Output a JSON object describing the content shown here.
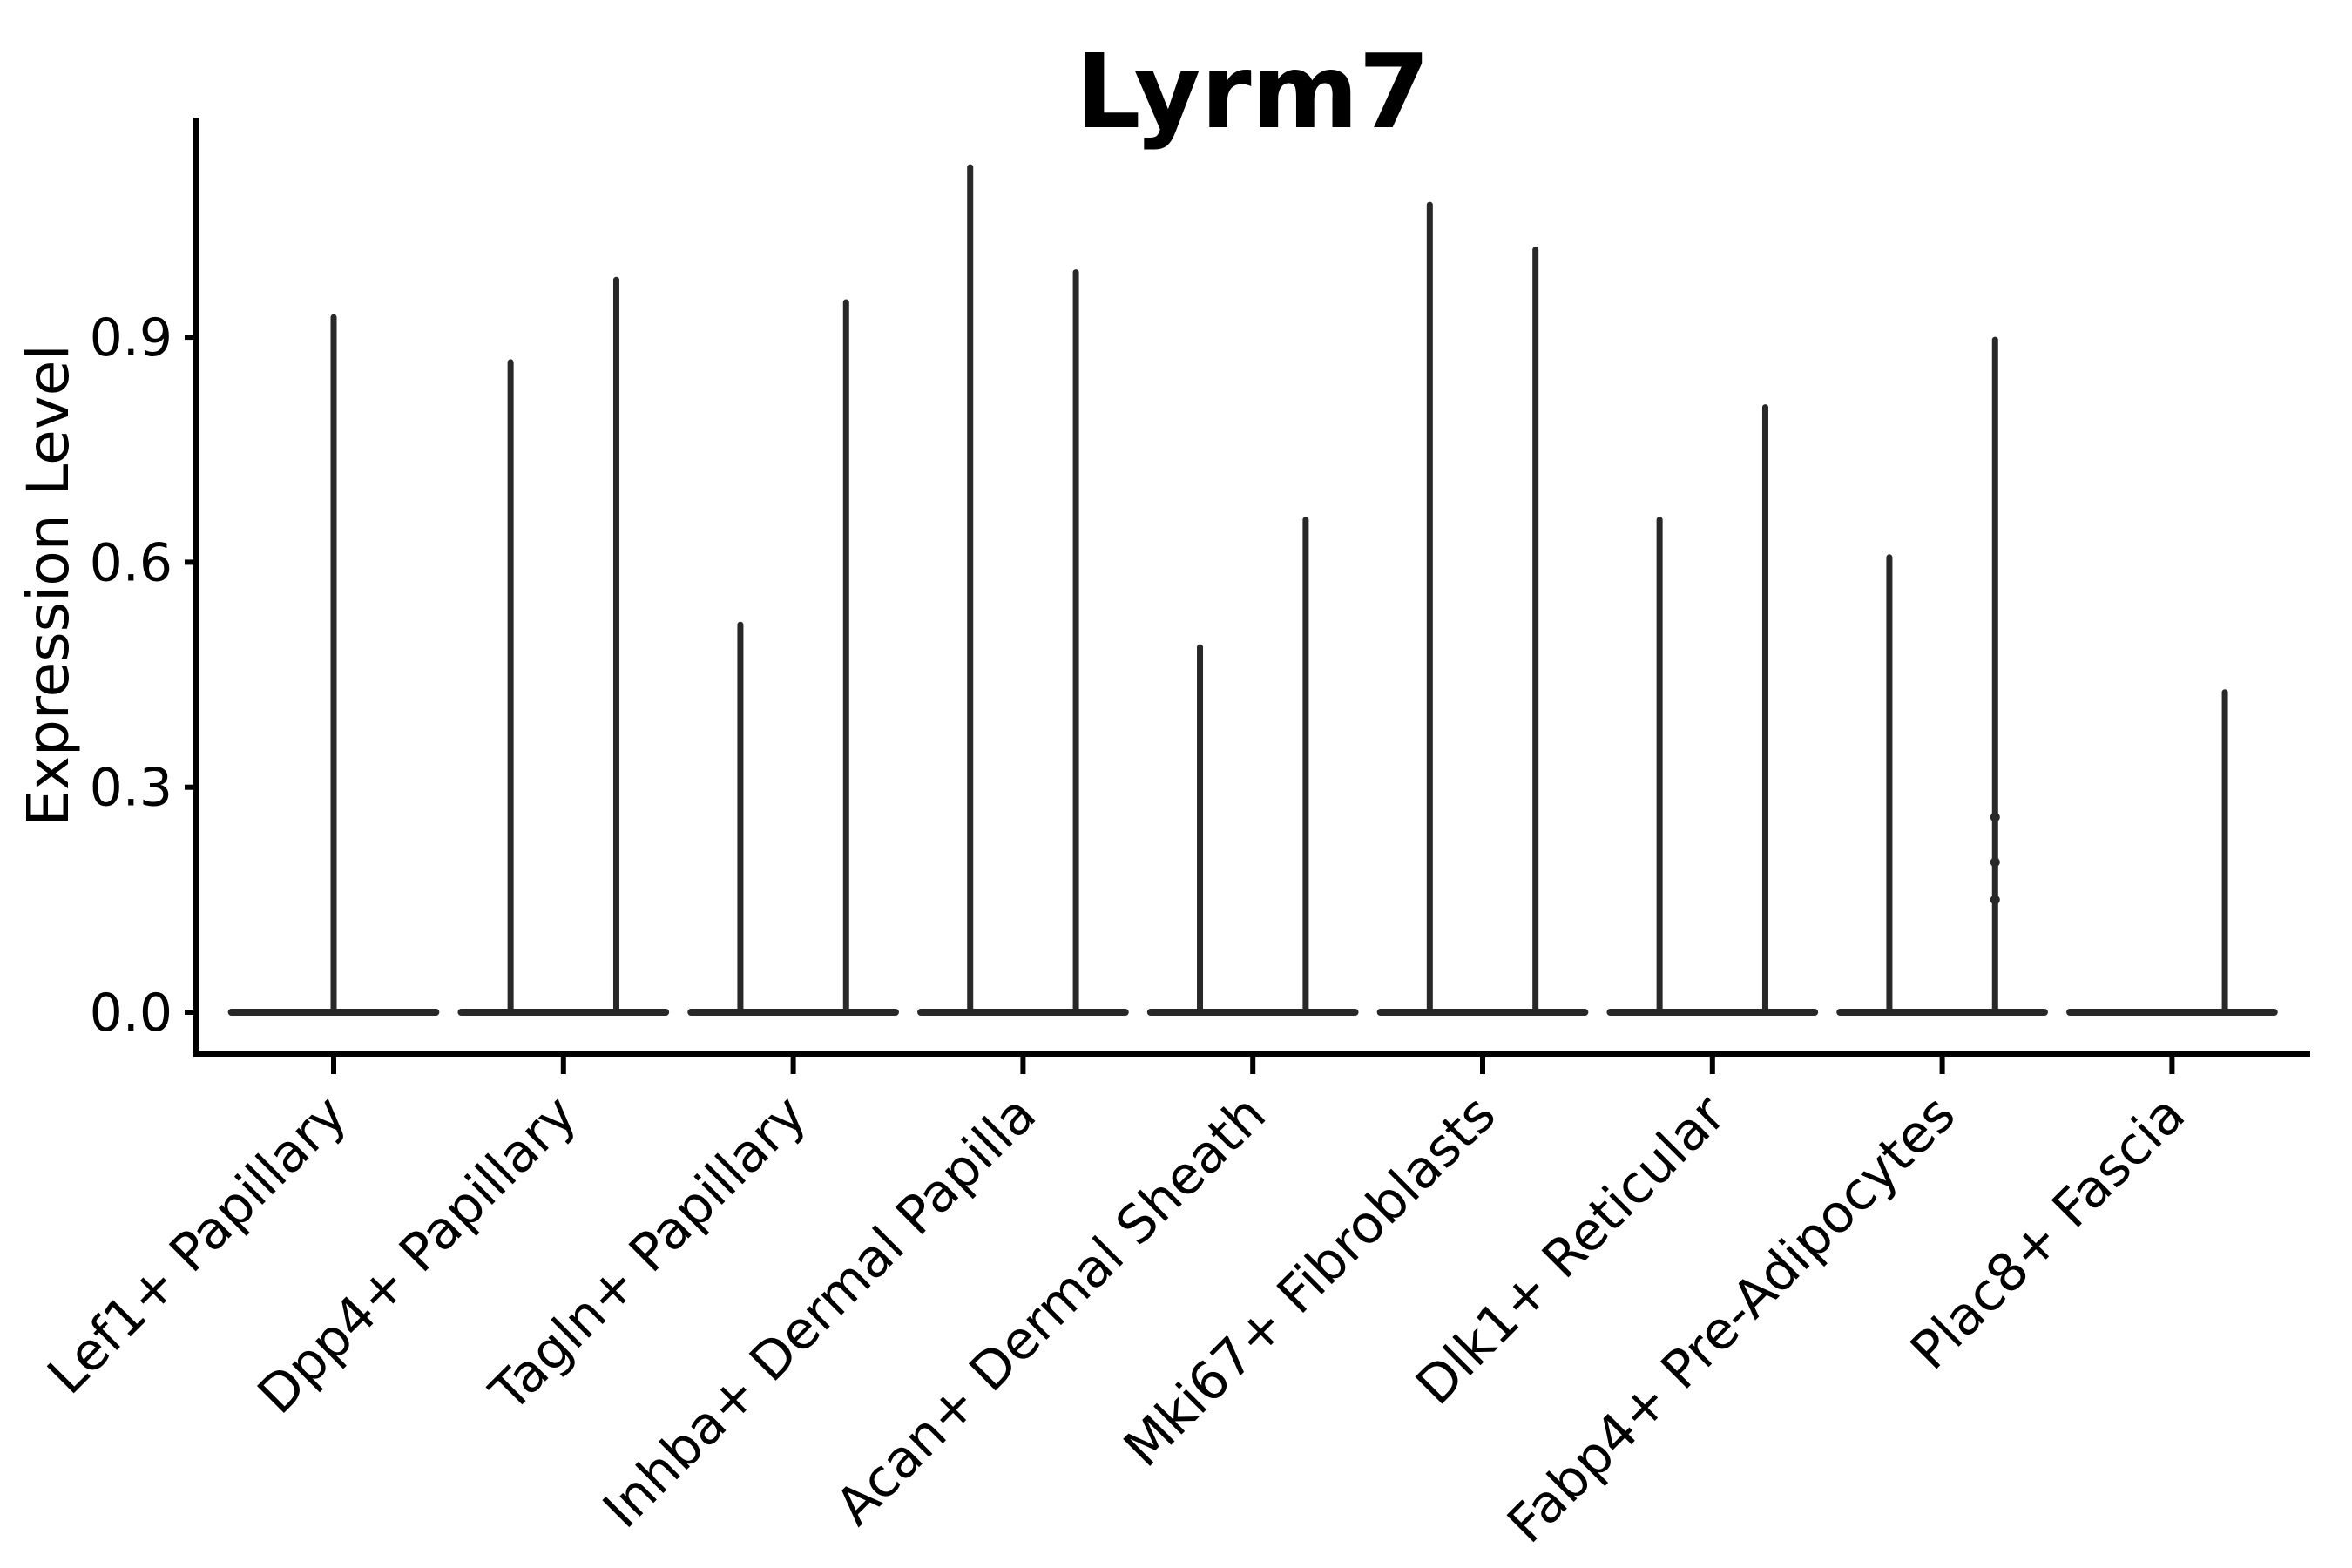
{
  "chart_data": {
    "type": "violin",
    "title": "Lyrm7",
    "xlabel": "",
    "ylabel": "Expression Level",
    "y_ticks": [
      0.0,
      0.3,
      0.6,
      0.9
    ],
    "y_tick_labels": [
      "0.0",
      "0.3",
      "0.6",
      "0.9"
    ],
    "ylim": [
      0.0,
      1.19
    ],
    "grid": false,
    "legend": "none",
    "categories": [
      "Lef1+ Papillary",
      "Dpp4+ Papillary",
      "Tagln+ Papillary",
      "Inhba+ Dermal Papilla",
      "Acan+ Dermal Sheath",
      "Mki67+ Fibroblasts",
      "Dlk1+ Reticular",
      "Fabp4+ Pre-Adipocytes",
      "Plac8+ Fascia"
    ],
    "violin_description": "Each cluster shows a flat near-zero density base at expression 0 with thin vertical spikes reaching the maximum expression value; two dodged spikes per cluster (left/right) except where noted.",
    "base_half_width": 0.46,
    "violins": [
      {
        "category": "Lef1+ Papillary",
        "spikes": [
          {
            "offset": 0.0,
            "max": 0.93
          }
        ]
      },
      {
        "category": "Dpp4+ Papillary",
        "spikes": [
          {
            "offset": -0.23,
            "max": 0.87
          },
          {
            "offset": 0.23,
            "max": 0.98
          }
        ]
      },
      {
        "category": "Tagln+ Papillary",
        "spikes": [
          {
            "offset": -0.23,
            "max": 0.52
          },
          {
            "offset": 0.23,
            "max": 0.95
          }
        ]
      },
      {
        "category": "Inhba+ Dermal Papilla",
        "spikes": [
          {
            "offset": -0.23,
            "max": 1.13
          },
          {
            "offset": 0.23,
            "max": 0.99
          }
        ]
      },
      {
        "category": "Acan+ Dermal Sheath",
        "spikes": [
          {
            "offset": -0.23,
            "max": 0.49
          },
          {
            "offset": 0.23,
            "max": 0.66
          }
        ]
      },
      {
        "category": "Mki67+ Fibroblasts",
        "spikes": [
          {
            "offset": -0.23,
            "max": 1.08
          },
          {
            "offset": 0.23,
            "max": 1.02
          }
        ]
      },
      {
        "category": "Dlk1+ Reticular",
        "spikes": [
          {
            "offset": -0.23,
            "max": 0.66
          },
          {
            "offset": 0.23,
            "max": 0.81
          }
        ]
      },
      {
        "category": "Fabp4+ Pre-Adipocytes",
        "spikes": [
          {
            "offset": -0.23,
            "max": 0.61
          },
          {
            "offset": 0.23,
            "max": 0.9
          }
        ],
        "points": [
          {
            "offset": 0.23,
            "value": 0.26
          },
          {
            "offset": 0.23,
            "value": 0.2
          },
          {
            "offset": 0.23,
            "value": 0.15
          }
        ]
      },
      {
        "category": "Plac8+ Fascia",
        "spikes": [
          {
            "offset": 0.23,
            "max": 0.43
          }
        ]
      }
    ],
    "colors": {
      "violin_stroke": "#282828",
      "axis": "#000000",
      "text": "#000000",
      "background": "#ffffff"
    }
  }
}
